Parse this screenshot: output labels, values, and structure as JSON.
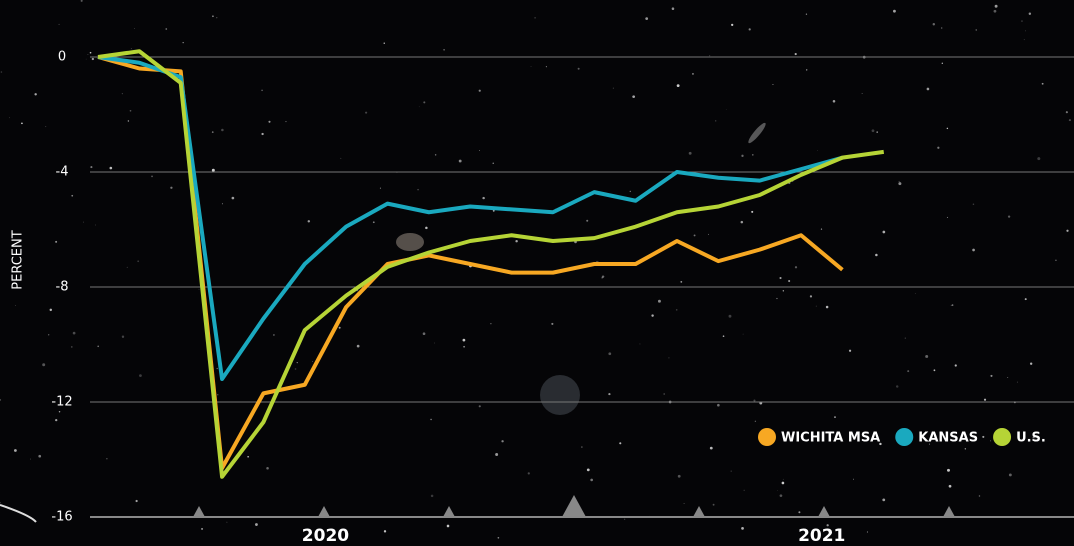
{
  "chart_data": {
    "type": "line",
    "y_label": "PERCENT",
    "x": [
      0,
      1,
      2,
      3,
      4,
      5,
      6,
      7,
      8,
      9,
      10,
      11,
      12,
      13,
      14,
      15,
      16,
      17,
      18,
      19
    ],
    "xlim": [
      -0.2,
      23.4
    ],
    "xticks": [
      {
        "value": 5.5,
        "label": "2020"
      },
      {
        "value": 17.5,
        "label": "2021"
      }
    ],
    "ylim": [
      -16,
      0.6
    ],
    "yticks": [
      0,
      -4,
      -8,
      -12,
      -16
    ],
    "grid": true,
    "legend": "bottom-right",
    "series": [
      {
        "name": "WICHITA MSA",
        "color": "#f7a823",
        "values": [
          0,
          -0.4,
          -0.5,
          -14.3,
          -11.7,
          -11.4,
          -8.7,
          -7.2,
          -6.9,
          -7.2,
          -7.5,
          -7.5,
          -7.2,
          -7.2,
          -6.4,
          -7.1,
          -6.7,
          -6.2,
          -7.4,
          null
        ]
      },
      {
        "name": "KANSAS",
        "color": "#1aa9bf",
        "values": [
          0,
          -0.2,
          -0.7,
          -11.2,
          -9.1,
          -7.2,
          -5.9,
          -5.1,
          -5.4,
          -5.2,
          -5.3,
          -5.4,
          -4.7,
          -5.0,
          -4.0,
          -4.2,
          -4.3,
          -3.9,
          -3.5,
          null
        ]
      },
      {
        "name": "U.S.",
        "color": "#b6d436",
        "values": [
          0,
          0.2,
          -0.9,
          -14.6,
          -12.7,
          -9.5,
          -8.3,
          -7.3,
          -6.8,
          -6.4,
          -6.2,
          -6.4,
          -6.3,
          -5.9,
          -5.4,
          -5.2,
          -4.8,
          -4.1,
          -3.5,
          -3.3
        ]
      }
    ]
  }
}
